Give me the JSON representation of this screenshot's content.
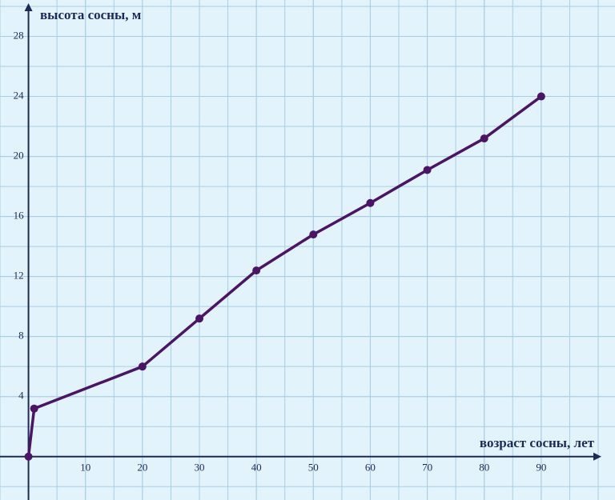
{
  "chart_data": {
    "type": "line",
    "x_label": "возраст сосны, лет",
    "y_label": "высота сосны, м",
    "x": [
      0,
      1,
      20,
      30,
      40,
      50,
      60,
      70,
      80,
      90
    ],
    "series": [
      {
        "color": "#4a1565",
        "values": [
          0,
          3.2,
          6,
          9.2,
          12.4,
          14.8,
          16.9,
          19.1,
          21.2,
          24
        ]
      }
    ],
    "xlim": [
      -5,
      100
    ],
    "ylim": [
      -3,
      30
    ],
    "xticks": [
      10,
      20,
      30,
      40,
      50,
      60,
      70,
      80,
      90
    ],
    "yticks": [
      4,
      8,
      12,
      16,
      20,
      24,
      28
    ],
    "grid": true
  }
}
